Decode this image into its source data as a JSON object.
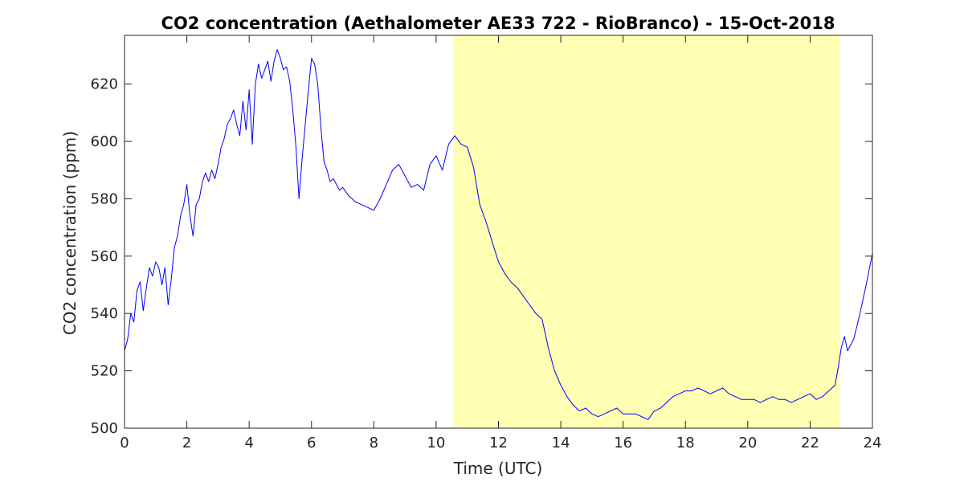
{
  "chart_data": {
    "type": "line",
    "title": "CO2 concentration (Aethalometer AE33 722 - RioBranco) - 15-Oct-2018",
    "xlabel": "Time (UTC)",
    "ylabel": "CO2 concentration (ppm)",
    "xlim": [
      0,
      24
    ],
    "ylim": [
      500,
      637
    ],
    "xticks": [
      0,
      2,
      4,
      6,
      8,
      10,
      12,
      14,
      16,
      18,
      20,
      22,
      24
    ],
    "yticks": [
      500,
      520,
      540,
      560,
      580,
      600,
      620
    ],
    "grid": false,
    "legend": "none",
    "shaded_region": {
      "x_start": 10.55,
      "x_end": 22.95,
      "color": "#ffffb3"
    },
    "series": [
      {
        "color": "#0000ff",
        "x": [
          0.0,
          0.1,
          0.2,
          0.3,
          0.4,
          0.5,
          0.6,
          0.7,
          0.8,
          0.9,
          1.0,
          1.1,
          1.2,
          1.3,
          1.4,
          1.5,
          1.6,
          1.7,
          1.8,
          1.9,
          2.0,
          2.1,
          2.2,
          2.3,
          2.4,
          2.5,
          2.6,
          2.7,
          2.8,
          2.9,
          3.0,
          3.1,
          3.2,
          3.3,
          3.4,
          3.5,
          3.6,
          3.7,
          3.8,
          3.9,
          4.0,
          4.1,
          4.2,
          4.3,
          4.4,
          4.5,
          4.6,
          4.7,
          4.8,
          4.9,
          5.0,
          5.1,
          5.2,
          5.3,
          5.4,
          5.5,
          5.6,
          5.7,
          5.8,
          5.9,
          6.0,
          6.1,
          6.2,
          6.3,
          6.4,
          6.5,
          6.6,
          6.7,
          6.8,
          6.9,
          7.0,
          7.2,
          7.4,
          7.6,
          7.8,
          8.0,
          8.2,
          8.4,
          8.6,
          8.8,
          9.0,
          9.2,
          9.4,
          9.6,
          9.8,
          10.0,
          10.2,
          10.4,
          10.6,
          10.8,
          11.0,
          11.2,
          11.4,
          11.6,
          11.8,
          12.0,
          12.2,
          12.4,
          12.6,
          12.8,
          13.0,
          13.2,
          13.4,
          13.6,
          13.8,
          14.0,
          14.2,
          14.4,
          14.6,
          14.8,
          15.0,
          15.2,
          15.4,
          15.6,
          15.8,
          16.0,
          16.2,
          16.4,
          16.6,
          16.8,
          17.0,
          17.2,
          17.4,
          17.6,
          17.8,
          18.0,
          18.2,
          18.4,
          18.6,
          18.8,
          19.0,
          19.2,
          19.4,
          19.6,
          19.8,
          20.0,
          20.2,
          20.4,
          20.6,
          20.8,
          21.0,
          21.2,
          21.4,
          21.6,
          21.8,
          22.0,
          22.2,
          22.4,
          22.6,
          22.8,
          22.9,
          23.0,
          23.1,
          23.2,
          23.4,
          23.6,
          23.8,
          24.0
        ],
        "y": [
          527,
          531,
          540,
          537,
          548,
          551,
          541,
          549,
          556,
          553,
          558,
          556,
          550,
          556,
          543,
          552,
          563,
          567,
          574,
          578,
          585,
          574,
          567,
          578,
          580,
          586,
          589,
          586,
          590,
          587,
          592,
          598,
          601,
          606,
          608,
          611,
          606,
          602,
          614,
          604,
          618,
          599,
          620,
          627,
          622,
          625,
          628,
          621,
          628,
          632,
          629,
          625,
          626,
          621,
          611,
          598,
          580,
          594,
          606,
          618,
          629,
          627,
          620,
          605,
          593,
          590,
          586,
          587,
          585,
          583,
          584,
          581,
          579,
          578,
          577,
          576,
          580,
          585,
          590,
          592,
          588,
          584,
          585,
          583,
          592,
          595,
          590,
          599,
          602,
          599,
          598,
          591,
          578,
          572,
          565,
          558,
          554,
          551,
          549,
          546,
          543,
          540,
          538,
          528,
          520,
          515,
          511,
          508,
          506,
          507,
          505,
          504,
          505,
          506,
          507,
          505,
          505,
          505,
          504,
          503,
          506,
          507,
          509,
          511,
          512,
          513,
          513,
          514,
          513,
          512,
          513,
          514,
          512,
          511,
          510,
          510,
          510,
          509,
          510,
          511,
          510,
          510,
          509,
          510,
          511,
          512,
          510,
          511,
          513,
          515,
          521,
          528,
          532,
          527,
          531,
          540,
          550,
          561
        ]
      }
    ]
  }
}
